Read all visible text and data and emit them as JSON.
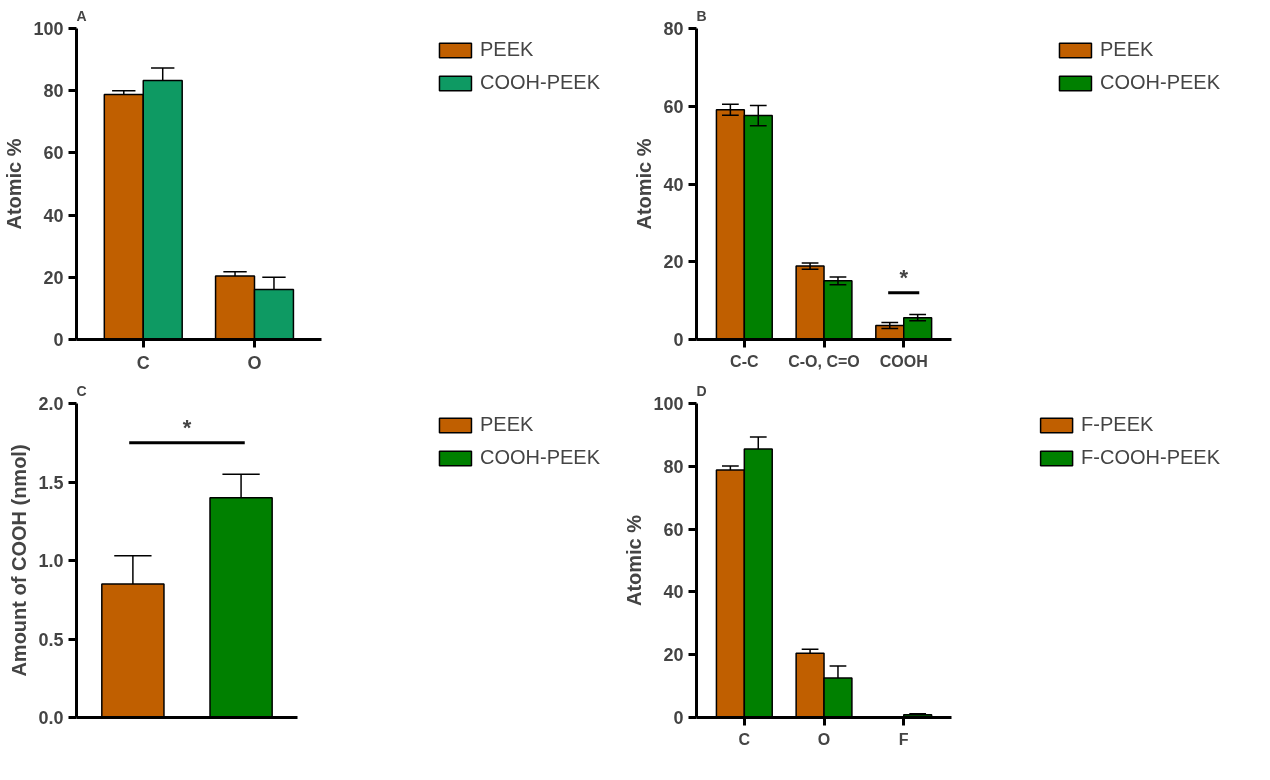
{
  "chart_data": [
    {
      "type": "bar",
      "title": "A",
      "ylabel": "Atomic %",
      "categories": [
        "C",
        "O"
      ],
      "ylim": [
        0,
        100
      ],
      "yticks": [
        0,
        20,
        40,
        60,
        80,
        100
      ],
      "legend": "top right",
      "grid": false,
      "series": [
        {
          "name": "PEEK",
          "color": "#c05f00",
          "values": [
            78.8,
            20.4
          ],
          "errors": [
            [
              78.8,
              80.0
            ],
            [
              20.4,
              21.8
            ]
          ]
        },
        {
          "name": "COOH-PEEK",
          "color": "#0e9a63",
          "values": [
            83.3,
            16.1
          ],
          "errors": [
            [
              83.3,
              87.3
            ],
            [
              16.1,
              20.0
            ]
          ]
        }
      ]
    },
    {
      "type": "bar",
      "title": "B",
      "ylabel": "Atomic %",
      "categories": [
        "C-C",
        "C-O, C=O",
        "COOH"
      ],
      "ylim": [
        0,
        80
      ],
      "yticks": [
        0,
        20,
        40,
        60,
        80
      ],
      "legend": "top right",
      "grid": false,
      "annotations": [
        "*"
      ],
      "series": [
        {
          "name": "PEEK",
          "color": "#c05f00",
          "values": [
            59.1,
            18.9,
            3.6
          ],
          "errors": [
            1.4,
            0.8,
            0.8
          ]
        },
        {
          "name": "COOH-PEEK",
          "color": "#008000",
          "values": [
            57.6,
            15.1,
            5.6
          ],
          "errors": [
            2.6,
            1.0,
            0.8
          ]
        }
      ]
    },
    {
      "type": "bar",
      "title": "C",
      "ylabel": "Amount of COOH (nmol)",
      "categories": [
        null
      ],
      "ylim": [
        0,
        2.0
      ],
      "yticks": [
        {
          "value": 0,
          "label": "0.0"
        },
        {
          "value": 0.5,
          "label": "0.5"
        },
        {
          "value": 1.0,
          "label": "1.0"
        },
        {
          "value": 1.5,
          "label": "1.5"
        },
        {
          "value": 2.0,
          "label": "2.0"
        }
      ],
      "legend": "top right",
      "grid": false,
      "annotations": [
        "*"
      ],
      "series": [
        {
          "name": "PEEK",
          "color": "#c05f00",
          "values": [
            0.85
          ],
          "errors": [
            [
              0.85,
              1.03
            ]
          ]
        },
        {
          "name": "COOH-PEEK",
          "color": "#008000",
          "values": [
            1.4
          ],
          "errors": [
            [
              1.4,
              1.55
            ]
          ]
        }
      ]
    },
    {
      "type": "bar",
      "title": "D",
      "ylabel": "Atomic %",
      "categories": [
        "C",
        "O",
        "F"
      ],
      "ylim": [
        0,
        100
      ],
      "yticks": [
        0,
        20,
        40,
        60,
        80,
        100
      ],
      "legend": "top right",
      "grid": false,
      "series": [
        {
          "name": "F-PEEK",
          "color": "#c05f00",
          "values": [
            78.8,
            20.5,
            0
          ],
          "errors": [
            [
              78.8,
              80.1
            ],
            [
              20.5,
              21.7
            ],
            null
          ]
        },
        {
          "name": "F-COOH-PEEK",
          "color": "#008000",
          "values": [
            85.5,
            12.6,
            0.9
          ],
          "errors": [
            [
              85.5,
              89.3
            ],
            [
              12.6,
              16.4
            ],
            [
              0.9,
              1.2
            ]
          ]
        }
      ]
    }
  ]
}
